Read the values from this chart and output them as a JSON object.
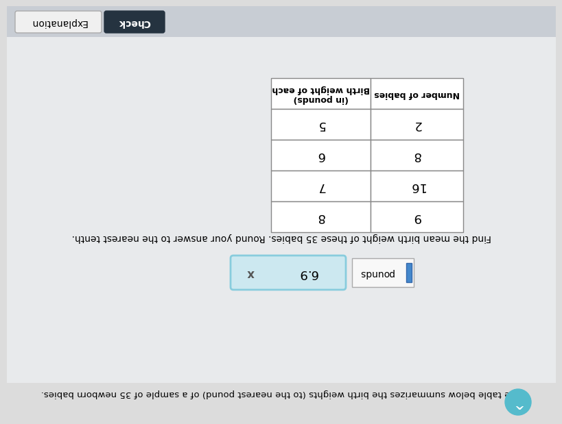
{
  "title_text": "The table below summarizes the birth weights (to the nearest pound) of a sample of 35 newborn babies.",
  "instruction_text": "Find the mean birth weight of these 35 babies. Round your answer to the nearest tenth.",
  "col1_header": "Number of babies",
  "col2_header_line1": "Birth weight of each",
  "col2_header_line2": "(in pounds)",
  "rows": [
    [
      2,
      5
    ],
    [
      8,
      6
    ],
    [
      16,
      7
    ],
    [
      9,
      8
    ]
  ],
  "answer_value": "6.9",
  "bg_color": "#dcdcdc",
  "bg_top_color": "#c8cdd4",
  "table_border": "#888888",
  "check_btn_bg": "#253340",
  "expl_btn_bg": "#f0f0f0",
  "input_bg": "#cce8f0",
  "pounds_box_bg": "#f8f8f8",
  "arrow_bg": "#55bbcc"
}
